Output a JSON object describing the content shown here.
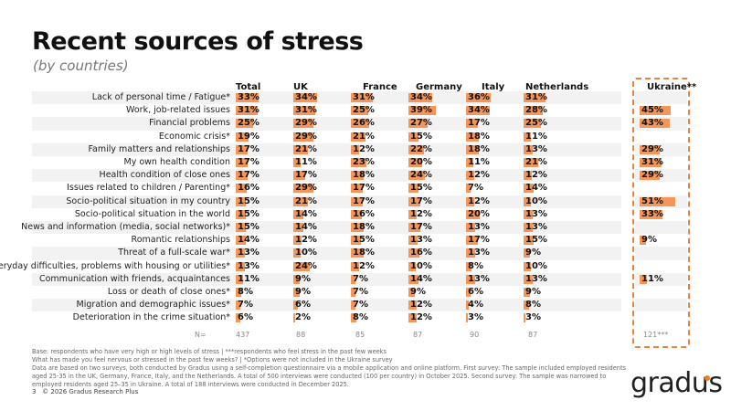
{
  "title": "Recent sources of stress",
  "subtitle": "(by countries)",
  "accent_color": "#f4955a",
  "columns": [
    "Total",
    "UK",
    "France",
    "Germany",
    "Italy",
    "Netherlands",
    "Ukraine**"
  ],
  "rows": [
    {
      "label": "Lack of personal time / Fatigue*",
      "values": [
        33,
        34,
        31,
        34,
        36,
        31,
        null
      ]
    },
    {
      "label": "Work, job-related issues",
      "values": [
        31,
        31,
        25,
        39,
        34,
        28,
        45
      ]
    },
    {
      "label": "Financial problems",
      "values": [
        25,
        29,
        26,
        27,
        17,
        25,
        43
      ]
    },
    {
      "label": "Economic crisis*",
      "values": [
        19,
        29,
        21,
        15,
        18,
        11,
        null
      ]
    },
    {
      "label": "Family matters and relationships",
      "values": [
        17,
        21,
        12,
        22,
        18,
        13,
        29
      ]
    },
    {
      "label": "My own health condition",
      "values": [
        17,
        11,
        23,
        20,
        11,
        21,
        31
      ]
    },
    {
      "label": "Health condition of close ones",
      "values": [
        17,
        17,
        18,
        24,
        12,
        12,
        29
      ]
    },
    {
      "label": "Issues related to children / Parenting*",
      "values": [
        16,
        29,
        17,
        15,
        7,
        14,
        null
      ]
    },
    {
      "label": "Socio-political situation in my country",
      "values": [
        15,
        21,
        17,
        17,
        12,
        10,
        51
      ]
    },
    {
      "label": "Socio-political situation in the world",
      "values": [
        15,
        14,
        16,
        12,
        20,
        13,
        33
      ]
    },
    {
      "label": "News and information (media, social networks)*",
      "values": [
        15,
        14,
        18,
        17,
        13,
        13,
        null
      ]
    },
    {
      "label": "Romantic relationships",
      "values": [
        14,
        12,
        15,
        13,
        17,
        15,
        9
      ]
    },
    {
      "label": "Threat of a full-scale war*",
      "values": [
        13,
        10,
        18,
        16,
        13,
        9,
        null
      ]
    },
    {
      "label": "Everyday difficulties, problems with housing or utilities*",
      "values": [
        13,
        24,
        12,
        10,
        8,
        10,
        null
      ]
    },
    {
      "label": "Communication with friends, acquaintances",
      "values": [
        11,
        9,
        7,
        14,
        13,
        13,
        11
      ]
    },
    {
      "label": "Loss or death of close ones*",
      "values": [
        8,
        9,
        7,
        9,
        6,
        9,
        null
      ]
    },
    {
      "label": "Migration and demographic issues*",
      "values": [
        7,
        6,
        7,
        12,
        4,
        8,
        null
      ]
    },
    {
      "label": "Deterioration in the crime situation*",
      "values": [
        6,
        2,
        8,
        12,
        3,
        3,
        null
      ]
    }
  ],
  "n_label": "N=",
  "n_values": [
    "437",
    "88",
    "85",
    "87",
    "90",
    "87",
    "121***"
  ],
  "footnotes": [
    "Base: respondents who have very high or high levels of stress | ***respondents who feel stress in the past few weeks",
    "What has made you feel nervous or stressed in the past few weeks? | *Options were not included in the Ukraine survey",
    "Data are based on two surveys, both conducted by Gradus using a self-completion questionnaire via a mobile application and online platform. First survey: The sample included employed residents aged 25-35 in the UK, Germany, France, Italy, and the Netherlands. A total of 500 interviews were conducted (100 per country) in October 2025. Second survey: The sample was narrowed to employed residents aged 25–35 in Ukraine. A total of 188 interviews were conducted in December 2025."
  ],
  "page_number": "3",
  "copyright": "© 2026 Gradus Research Plus",
  "logo": "gradus"
}
